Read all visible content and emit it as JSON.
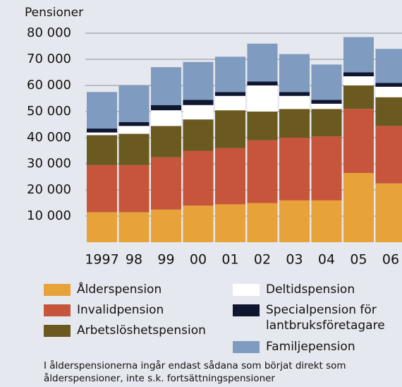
{
  "chart_data": {
    "type": "stacked_bar",
    "y_axis_label": "Pensioner",
    "categories": [
      "1997",
      "98",
      "99",
      "00",
      "01",
      "02",
      "03",
      "04",
      "05",
      "06"
    ],
    "series": [
      {
        "name": "Ålderspension",
        "color": "#e8a23a",
        "values": [
          11500,
          11500,
          12500,
          14000,
          14500,
          15000,
          16000,
          16000,
          26500,
          22500
        ]
      },
      {
        "name": "Invalidpension",
        "color": "#c6553b",
        "values": [
          18000,
          18000,
          20000,
          21000,
          21500,
          24000,
          24000,
          24500,
          24500,
          22000
        ]
      },
      {
        "name": "Arbetslöshetspension",
        "color": "#6b5a1f",
        "values": [
          11500,
          12000,
          12000,
          12000,
          14500,
          11000,
          11000,
          10500,
          9000,
          11000
        ]
      },
      {
        "name": "Deltidspension",
        "color": "#ffffff",
        "values": [
          1000,
          3000,
          6000,
          5500,
          5500,
          10000,
          5000,
          2000,
          3500,
          4000
        ]
      },
      {
        "name": "Specialpension för lantbruksföretagare",
        "color": "#0e1630",
        "values": [
          1500,
          1500,
          2000,
          2000,
          1500,
          1500,
          1500,
          1500,
          1500,
          1500
        ]
      },
      {
        "name": "Familjepension",
        "color": "#7f9bc0",
        "values": [
          14000,
          14000,
          14500,
          14500,
          13500,
          14500,
          14500,
          13500,
          13500,
          13000
        ]
      }
    ],
    "ylim": [
      0,
      80000
    ],
    "yticks": [
      {
        "value": 10000,
        "label": "10 000"
      },
      {
        "value": 20000,
        "label": "20 000"
      },
      {
        "value": 30000,
        "label": "30 000"
      },
      {
        "value": 40000,
        "label": "40 000"
      },
      {
        "value": 50000,
        "label": "50 000"
      },
      {
        "value": 60000,
        "label": "60 000"
      },
      {
        "value": 70000,
        "label": "70 000"
      },
      {
        "value": 80000,
        "label": "80 000"
      }
    ],
    "grid": true,
    "footnote": "I ålderspensionerna ingår endast sådana som börjat direkt som ålderspensioner, inte s.k. fortsättningspensioner"
  }
}
